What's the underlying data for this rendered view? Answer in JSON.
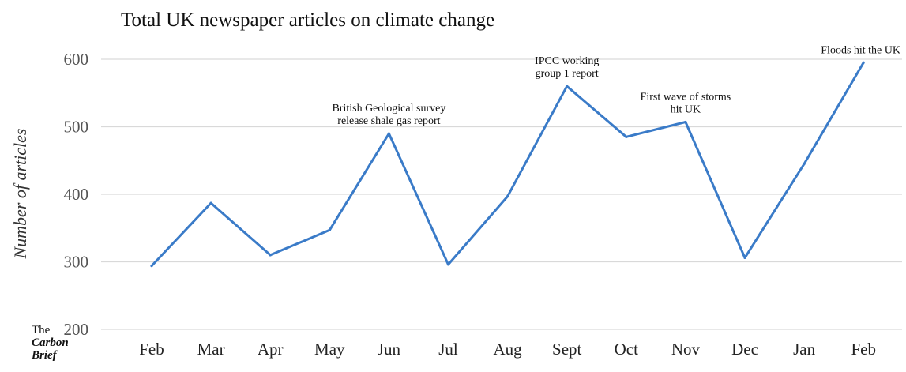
{
  "chart_data": {
    "type": "line",
    "title": "Total UK newspaper articles on climate change",
    "ylabel": "Number of articles",
    "xlabel": "",
    "ylim": [
      200,
      600
    ],
    "yticks": [
      "200",
      "300",
      "400",
      "500",
      "600"
    ],
    "categories": [
      "Feb",
      "Mar",
      "Apr",
      "May",
      "Jun",
      "Jul",
      "Aug",
      "Sept",
      "Oct",
      "Nov",
      "Dec",
      "Jan",
      "Feb"
    ],
    "series": [
      {
        "values": [
          294,
          387,
          310,
          347,
          490,
          296,
          397,
          560,
          485,
          507,
          306,
          445,
          595
        ]
      }
    ],
    "annotations": [
      {
        "index": 4,
        "lines": [
          "British Geological survey",
          "release shale gas report"
        ]
      },
      {
        "index": 7,
        "lines": [
          "IPCC working",
          "group 1 report"
        ]
      },
      {
        "index": 9,
        "lines": [
          "First wave of storms",
          "hit UK"
        ]
      },
      {
        "index": 12,
        "lines": [
          "Floods hit the UK"
        ]
      }
    ],
    "grid": true,
    "legend": "none",
    "line_color": "#3a7bc8"
  },
  "logo": {
    "line1": "The",
    "line2": "Carbon",
    "line3": "Brief"
  }
}
